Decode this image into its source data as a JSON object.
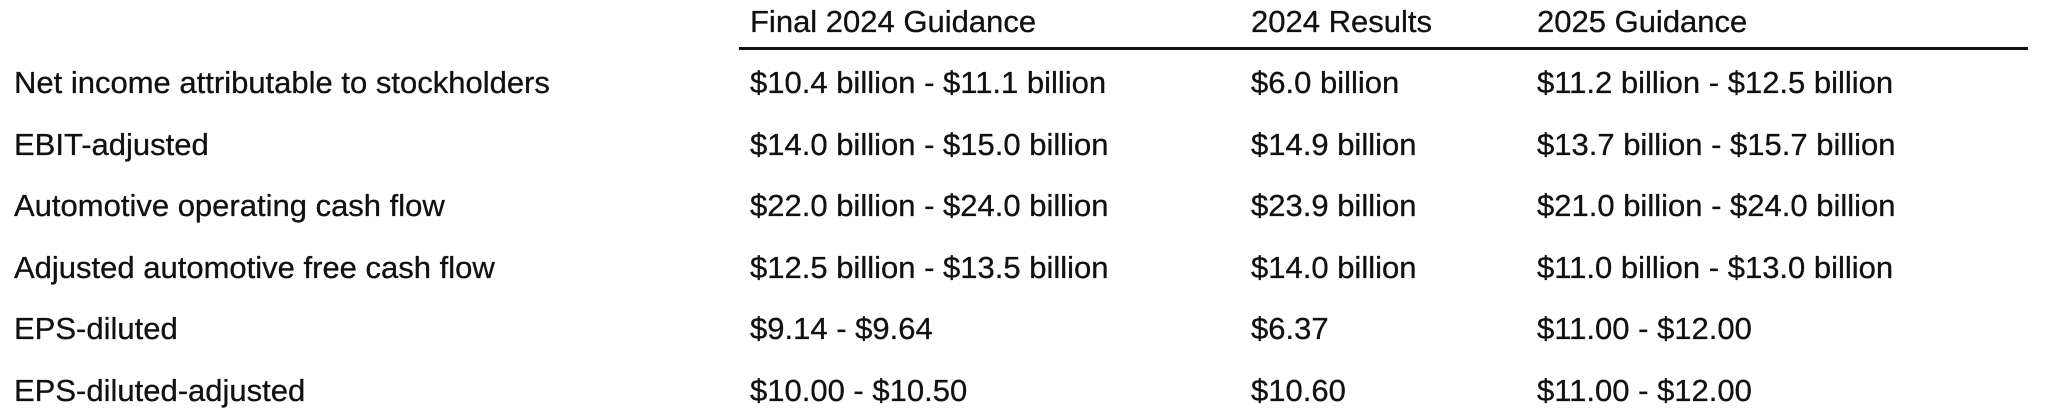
{
  "table": {
    "headers": [
      "Final 2024 Guidance",
      "2024 Results",
      "2025 Guidance"
    ],
    "rows": [
      [
        "Net income attributable to stockholders",
        "$10.4 billion - $11.1 billion",
        "$6.0 billion",
        "$11.2 billion - $12.5 billion"
      ],
      [
        "EBIT-adjusted",
        "$14.0 billion - $15.0 billion",
        "$14.9 billion",
        "$13.7 billion - $15.7 billion"
      ],
      [
        "Automotive operating cash flow",
        "$22.0 billion - $24.0 billion",
        "$23.9 billion",
        "$21.0 billion - $24.0 billion"
      ],
      [
        "Adjusted automotive free cash flow",
        "$12.5 billion - $13.5 billion",
        "$14.0 billion",
        "$11.0 billion - $13.0 billion"
      ],
      [
        "EPS-diluted",
        "$9.14 - $9.64",
        "$6.37",
        "$11.00 - $12.00"
      ],
      [
        "EPS-diluted-adjusted",
        "$10.00 - $10.50",
        "$10.60",
        "$11.00 - $12.00"
      ]
    ]
  }
}
